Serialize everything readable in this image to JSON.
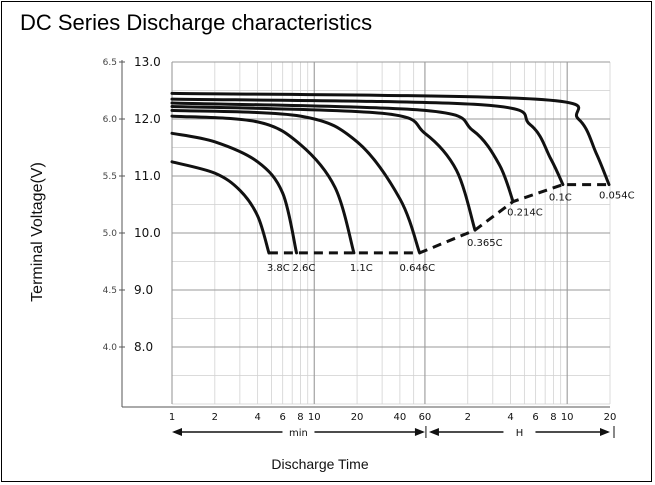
{
  "chart_data": {
    "type": "line",
    "title": "DC Series Discharge characteristics",
    "ylabel": "Terminal Voltage(V)",
    "xlabel": "Discharge Time",
    "x_tick_labels": [
      "1",
      "2",
      "4",
      "6",
      "8",
      "10",
      "20",
      "40",
      "60",
      "2",
      "4",
      "6",
      "8",
      "10",
      "20"
    ],
    "x_ranges": [
      {
        "label": "min",
        "from": "1",
        "to": "60"
      },
      {
        "label": "H",
        "from": "1",
        "to": "20"
      }
    ],
    "y_left_ticks": [
      "6.5",
      "6.0",
      "5.5",
      "5.0",
      "4.5",
      "4.0"
    ],
    "y_right_ticks": [
      "13.0",
      "12.0",
      "11.0",
      "10.0",
      "9.0",
      "8.0"
    ],
    "ylim": [
      7.0,
      13.0
    ],
    "grid": true,
    "x_unit_note": "x values in minutes (log scale); 60 min = 1 H",
    "series": [
      {
        "name": "3.8C",
        "points": [
          [
            1,
            11.25
          ],
          [
            2,
            11.05
          ],
          [
            3,
            10.75
          ],
          [
            4,
            10.3
          ],
          [
            4.8,
            9.65
          ]
        ]
      },
      {
        "name": "2.6C",
        "points": [
          [
            1,
            11.75
          ],
          [
            2,
            11.6
          ],
          [
            4,
            11.25
          ],
          [
            6,
            10.7
          ],
          [
            7.5,
            9.65
          ]
        ]
      },
      {
        "name": "1.1C",
        "points": [
          [
            1,
            12.05
          ],
          [
            4,
            11.95
          ],
          [
            8,
            11.55
          ],
          [
            14,
            10.8
          ],
          [
            19,
            9.65
          ]
        ]
      },
      {
        "name": "0.646C",
        "points": [
          [
            1,
            12.15
          ],
          [
            8,
            12.05
          ],
          [
            20,
            11.6
          ],
          [
            40,
            10.6
          ],
          [
            55,
            9.65
          ]
        ]
      },
      {
        "name": "0.365C",
        "points": [
          [
            1,
            12.22
          ],
          [
            30,
            12.1
          ],
          [
            60,
            11.75
          ],
          [
            100,
            11.1
          ],
          [
            135,
            10.05
          ]
        ]
      },
      {
        "name": "0.214C",
        "points": [
          [
            1,
            12.28
          ],
          [
            60,
            12.15
          ],
          [
            130,
            11.8
          ],
          [
            200,
            11.2
          ],
          [
            250,
            10.55
          ]
        ]
      },
      {
        "name": "0.1C",
        "points": [
          [
            1,
            12.35
          ],
          [
            150,
            12.25
          ],
          [
            330,
            11.9
          ],
          [
            460,
            11.3
          ],
          [
            560,
            10.85
          ]
        ]
      },
      {
        "name": "0.054C",
        "points": [
          [
            1,
            12.45
          ],
          [
            360,
            12.35
          ],
          [
            720,
            12.0
          ],
          [
            960,
            11.4
          ],
          [
            1180,
            10.85
          ]
        ]
      }
    ],
    "end_of_discharge_line": [
      [
        4.8,
        9.65
      ],
      [
        7.5,
        9.65
      ],
      [
        19,
        9.65
      ],
      [
        55,
        9.65
      ],
      [
        135,
        10.05
      ],
      [
        250,
        10.55
      ],
      [
        560,
        10.85
      ],
      [
        1180,
        10.85
      ]
    ]
  }
}
